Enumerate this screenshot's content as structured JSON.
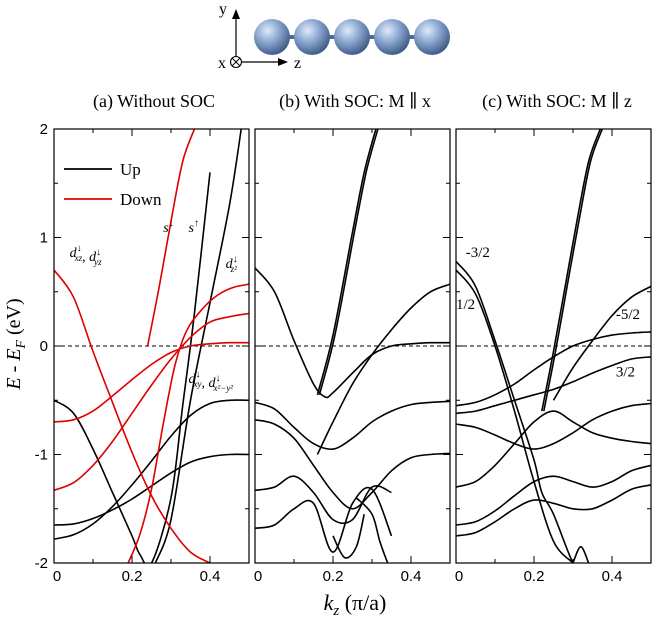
{
  "figure": {
    "axes_legend": {
      "y": "y",
      "x": "x",
      "z": "z"
    },
    "ylabel": "E - E",
    "ylabel_sub": "F",
    "ylabel_unit": " (eV)",
    "xlabel": "k",
    "xlabel_sub": "z",
    "xlabel_unit": " (π/a)",
    "colors": {
      "up": "#000000",
      "down": "#dd0000",
      "atom": "#7e9ec8"
    }
  },
  "chart_data": [
    {
      "type": "line",
      "title": "(a) Without SOC",
      "xlim": [
        0,
        0.5
      ],
      "ylim": [
        -2,
        2
      ],
      "xticks": [
        0,
        0.2,
        0.4
      ],
      "xticklabels": [
        "0",
        "0.2",
        "0.4"
      ],
      "yticks": [
        -2,
        -1,
        0,
        1,
        2
      ],
      "yticklabels": [
        "-2",
        "-1",
        "0",
        "1",
        "2"
      ],
      "fermi_level": 0,
      "legend": {
        "position": "top-left",
        "entries": [
          "Up",
          "Down"
        ]
      },
      "series": [
        {
          "name": "Up",
          "color": "#000000",
          "bands": [
            {
              "x": [
                0,
                0.05,
                0.1,
                0.15,
                0.2,
                0.25,
                0.3,
                0.35,
                0.4,
                0.45,
                0.5
              ],
              "y": [
                -1.65,
                -1.64,
                -1.59,
                -1.51,
                -1.41,
                -1.29,
                -1.17,
                -1.07,
                -1.02,
                -1.0,
                -1.0
              ]
            },
            {
              "x": [
                0,
                0.05,
                0.1,
                0.15,
                0.2,
                0.25,
                0.3,
                0.35,
                0.4,
                0.45,
                0.5
              ],
              "y": [
                -1.78,
                -1.74,
                -1.64,
                -1.48,
                -1.28,
                -1.06,
                -0.83,
                -0.64,
                -0.53,
                -0.5,
                -0.5
              ]
            },
            {
              "x": [
                0,
                0.05,
                0.1,
                0.15,
                0.2,
                0.22,
                0.25,
                0.3,
                0.33,
                0.36,
                0.4
              ],
              "y": [
                -0.5,
                -0.62,
                -0.95,
                -1.35,
                -1.75,
                -1.92,
                -2.0,
                -1.4,
                -0.55,
                0.3,
                1.6
              ]
            },
            {
              "x": [
                0.26,
                0.3,
                0.35,
                0.4,
                0.45,
                0.48
              ],
              "y": [
                -2.0,
                -1.6,
                -0.5,
                0.4,
                1.3,
                2.0
              ]
            }
          ]
        },
        {
          "name": "Down",
          "color": "#dd0000",
          "bands": [
            {
              "x": [
                0,
                0.05,
                0.1,
                0.15,
                0.2,
                0.25,
                0.3,
                0.35,
                0.4,
                0.45,
                0.5
              ],
              "y": [
                -1.33,
                -1.26,
                -1.1,
                -0.88,
                -0.62,
                -0.36,
                -0.12,
                0.08,
                0.22,
                0.27,
                0.3
              ]
            },
            {
              "x": [
                0,
                0.05,
                0.1,
                0.15,
                0.2,
                0.25,
                0.3,
                0.35,
                0.4,
                0.45,
                0.5
              ],
              "y": [
                -0.7,
                -0.68,
                -0.6,
                -0.46,
                -0.31,
                -0.17,
                -0.06,
                0.0,
                0.02,
                0.03,
                0.03
              ]
            },
            {
              "x": [
                0,
                0.05,
                0.1,
                0.15,
                0.2,
                0.25,
                0.3,
                0.35,
                0.4
              ],
              "y": [
                0.7,
                0.45,
                -0.05,
                -0.52,
                -0.98,
                -1.38,
                -1.68,
                -1.9,
                -2.0
              ]
            },
            {
              "x": [
                0.19,
                0.22,
                0.25,
                0.28,
                0.31,
                0.34,
                0.38,
                0.42,
                0.46,
                0.5
              ],
              "y": [
                -2.0,
                -1.74,
                -1.32,
                -0.72,
                -0.18,
                0.14,
                0.34,
                0.47,
                0.54,
                0.57
              ]
            },
            {
              "x": [
                0.24,
                0.27,
                0.3,
                0.33,
                0.36
              ],
              "y": [
                0.0,
                0.55,
                1.15,
                1.7,
                2.0
              ]
            }
          ]
        }
      ],
      "annotations": [
        {
          "base": "d",
          "sup": "↓",
          "sub": "xz",
          "sep": ", ",
          "base2": "d",
          "sup2": "↓",
          "sub2": "yz",
          "x": 0.04,
          "y": 0.82
        },
        {
          "base": "s",
          "sup": "↓",
          "x": 0.28,
          "y": 1.05
        },
        {
          "base": "s",
          "sup": "↑",
          "x": 0.345,
          "y": 1.05
        },
        {
          "base": "d",
          "sup": "↓",
          "sub": "z²",
          "x": 0.44,
          "y": 0.72
        },
        {
          "base": "d",
          "sup": "↓",
          "sub": "xy",
          "sep": ", ",
          "base2": "d",
          "sup2": "↓",
          "sub2": "x²−y²",
          "x": 0.345,
          "y": -0.34
        }
      ]
    },
    {
      "type": "line",
      "title": "(b) With SOC: M ∥ x",
      "xlim": [
        0,
        0.5
      ],
      "ylim": [
        -2,
        2
      ],
      "xticks": [
        0,
        0.2,
        0.4
      ],
      "xticklabels": [
        "0",
        "0.2",
        "0.4"
      ],
      "fermi_level": 0,
      "series": [
        {
          "color": "#000000",
          "bands": [
            {
              "x": [
                0,
                0.05,
                0.1,
                0.15,
                0.18,
                0.2,
                0.25,
                0.3,
                0.35,
                0.4,
                0.45,
                0.5
              ],
              "y": [
                0.72,
                0.5,
                0.05,
                -0.35,
                -0.47,
                -0.43,
                -0.25,
                -0.08,
                0.0,
                0.02,
                0.03,
                0.03
              ]
            },
            {
              "x": [
                0.16,
                0.2,
                0.25,
                0.28,
                0.31
              ],
              "y": [
                -0.45,
                0.1,
                1.05,
                1.6,
                2.0
              ]
            },
            {
              "x": [
                0.165,
                0.205,
                0.255,
                0.285,
                0.315
              ],
              "y": [
                -0.45,
                0.1,
                1.05,
                1.6,
                2.0
              ]
            },
            {
              "x": [
                0.16,
                0.2,
                0.25,
                0.3,
                0.35,
                0.4,
                0.45,
                0.5
              ],
              "y": [
                -1.0,
                -0.7,
                -0.35,
                -0.08,
                0.15,
                0.35,
                0.5,
                0.57
              ]
            },
            {
              "x": [
                0,
                0.05,
                0.1,
                0.15,
                0.2,
                0.25,
                0.3,
                0.35,
                0.4,
                0.45,
                0.5
              ],
              "y": [
                -0.52,
                -0.58,
                -0.75,
                -0.9,
                -0.95,
                -0.85,
                -0.7,
                -0.6,
                -0.54,
                -0.52,
                -0.51
              ]
            },
            {
              "x": [
                0,
                0.05,
                0.1,
                0.15,
                0.2,
                0.25,
                0.3,
                0.35,
                0.4,
                0.45,
                0.5
              ],
              "y": [
                -0.68,
                -0.72,
                -0.85,
                -1.1,
                -1.35,
                -1.5,
                -1.35,
                -1.15,
                -1.03,
                -1.0,
                -0.99
              ]
            },
            {
              "x": [
                0,
                0.05,
                0.1,
                0.15,
                0.2,
                0.25,
                0.3,
                0.35
              ],
              "y": [
                -1.33,
                -1.3,
                -1.2,
                -1.35,
                -1.6,
                -1.6,
                -1.3,
                -1.35
              ]
            },
            {
              "x": [
                0,
                0.05,
                0.1,
                0.15,
                0.2,
                0.25,
                0.3,
                0.35
              ],
              "y": [
                -1.68,
                -1.65,
                -1.5,
                -1.45,
                -1.9,
                -1.45,
                -1.32,
                -1.75
              ]
            },
            {
              "x": [
                0.26,
                0.3,
                0.32,
                0.34
              ],
              "y": [
                -1.4,
                -1.55,
                -1.8,
                -2.0
              ]
            },
            {
              "x": [
                0.2,
                0.23,
                0.26,
                0.28
              ],
              "y": [
                -1.75,
                -1.95,
                -1.85,
                -1.55
              ]
            }
          ]
        }
      ]
    },
    {
      "type": "line",
      "title": "(c) With SOC: M ∥ z",
      "xlim": [
        0,
        0.5
      ],
      "ylim": [
        -2,
        2
      ],
      "xticks": [
        0,
        0.2,
        0.4
      ],
      "xticklabels": [
        "0",
        "0.2",
        "0.4"
      ],
      "fermi_level": 0,
      "series": [
        {
          "color": "#000000",
          "bands": [
            {
              "x": [
                0,
                0.05,
                0.1,
                0.15,
                0.2,
                0.22,
                0.25,
                0.3,
                0.32
              ],
              "y": [
                0.78,
                0.55,
                0.05,
                -0.5,
                -1.05,
                -1.35,
                -1.55,
                -2.0,
                -2.0
              ]
            },
            {
              "x": [
                0,
                0.05,
                0.1,
                0.15,
                0.2,
                0.25,
                0.3
              ],
              "y": [
                0.7,
                0.48,
                0.0,
                -0.6,
                -1.25,
                -1.8,
                -2.0
              ]
            },
            {
              "x": [
                0.22,
                0.25,
                0.28,
                0.31,
                0.34,
                0.37
              ],
              "y": [
                -0.6,
                -0.05,
                0.55,
                1.15,
                1.7,
                2.0
              ]
            },
            {
              "x": [
                0.225,
                0.255,
                0.285,
                0.315,
                0.345,
                0.375
              ],
              "y": [
                -0.6,
                -0.05,
                0.55,
                1.15,
                1.7,
                2.0
              ]
            },
            {
              "x": [
                0.25,
                0.3,
                0.35,
                0.4,
                0.45,
                0.5
              ],
              "y": [
                -0.5,
                -0.2,
                0.05,
                0.28,
                0.45,
                0.55
              ]
            },
            {
              "x": [
                0,
                0.05,
                0.1,
                0.15,
                0.2,
                0.25,
                0.3,
                0.35,
                0.4,
                0.45,
                0.5
              ],
              "y": [
                -0.55,
                -0.52,
                -0.45,
                -0.35,
                -0.22,
                -0.1,
                0.0,
                0.06,
                0.1,
                0.12,
                0.13
              ]
            },
            {
              "x": [
                0,
                0.05,
                0.1,
                0.15,
                0.2,
                0.25,
                0.3,
                0.35,
                0.4,
                0.45,
                0.5
              ],
              "y": [
                -0.62,
                -0.6,
                -0.55,
                -0.5,
                -0.45,
                -0.4,
                -0.33,
                -0.25,
                -0.18,
                -0.12,
                -0.1
              ]
            },
            {
              "x": [
                0,
                0.05,
                0.1,
                0.15,
                0.2,
                0.25,
                0.3,
                0.35,
                0.4,
                0.45,
                0.5
              ],
              "y": [
                -0.72,
                -0.75,
                -0.82,
                -0.9,
                -0.95,
                -0.9,
                -0.8,
                -0.68,
                -0.6,
                -0.55,
                -0.53
              ]
            },
            {
              "x": [
                0,
                0.05,
                0.1,
                0.15,
                0.2,
                0.25,
                0.3,
                0.35,
                0.4,
                0.45,
                0.5
              ],
              "y": [
                -1.3,
                -1.25,
                -1.1,
                -0.9,
                -0.7,
                -0.6,
                -0.7,
                -0.8,
                -0.85,
                -0.88,
                -0.9
              ]
            },
            {
              "x": [
                0,
                0.05,
                0.1,
                0.15,
                0.2,
                0.25,
                0.3,
                0.35,
                0.4,
                0.45,
                0.5
              ],
              "y": [
                -1.65,
                -1.62,
                -1.52,
                -1.38,
                -1.25,
                -1.2,
                -1.25,
                -1.3,
                -1.25,
                -1.15,
                -1.1
              ]
            },
            {
              "x": [
                0,
                0.05,
                0.1,
                0.15,
                0.2,
                0.25,
                0.3,
                0.35,
                0.4,
                0.45,
                0.5
              ],
              "y": [
                -1.75,
                -1.72,
                -1.62,
                -1.5,
                -1.42,
                -1.45,
                -1.5,
                -1.5,
                -1.42,
                -1.32,
                -1.28
              ]
            },
            {
              "x": [
                0.3,
                0.32,
                0.34
              ],
              "y": [
                -2.0,
                -1.85,
                -2.0
              ]
            }
          ]
        }
      ],
      "annotations": [
        {
          "text": "-3/2",
          "x": 0.025,
          "y": 0.82
        },
        {
          "text": "1/2",
          "x": 0.0,
          "y": 0.34
        },
        {
          "text": "-5/2",
          "x": 0.41,
          "y": 0.25
        },
        {
          "text": "3/2",
          "x": 0.41,
          "y": -0.28
        }
      ]
    }
  ]
}
